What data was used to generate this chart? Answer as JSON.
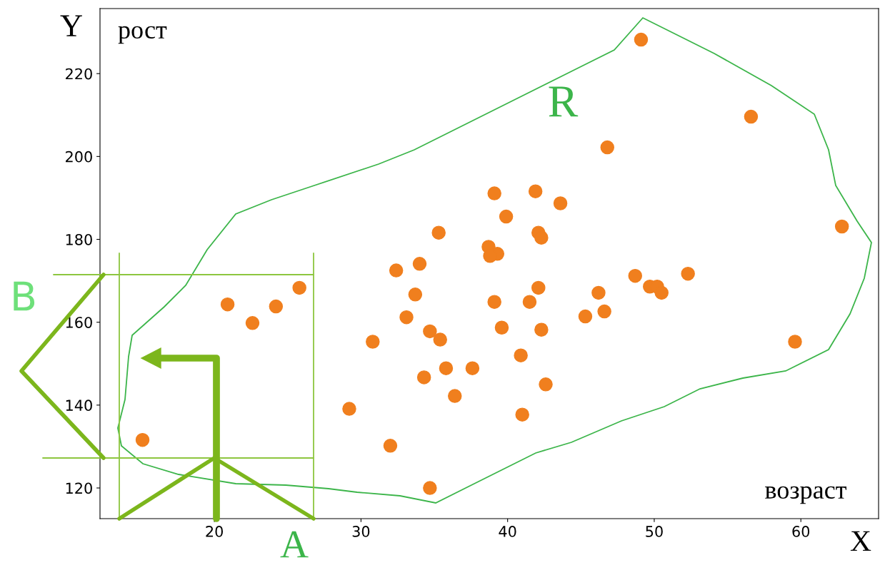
{
  "chart_data": {
    "type": "scatter",
    "x": [
      15.1,
      20.9,
      22.6,
      24.2,
      25.8,
      29.2,
      30.8,
      32.0,
      34.7,
      32.4,
      34.0,
      33.7,
      33.1,
      35.3,
      34.7,
      35.4,
      34.3,
      35.8,
      36.4,
      37.6,
      39.1,
      39.9,
      38.7,
      39.3,
      38.8,
      39.1,
      39.6,
      40.9,
      41.0,
      41.9,
      43.6,
      42.1,
      42.3,
      42.1,
      41.5,
      42.3,
      42.6,
      46.8,
      49.1,
      46.2,
      46.6,
      45.3,
      48.7,
      49.7,
      50.2,
      50.5,
      52.3,
      56.6,
      62.8,
      59.6
    ],
    "values": [
      131.6,
      164.3,
      159.8,
      163.8,
      168.3,
      139.1,
      155.3,
      130.2,
      120.0,
      172.5,
      174.1,
      166.7,
      161.2,
      181.6,
      157.8,
      155.8,
      146.7,
      148.9,
      142.2,
      148.9,
      191.1,
      185.5,
      178.2,
      176.5,
      176.0,
      164.9,
      158.7,
      152.0,
      137.7,
      191.6,
      188.7,
      181.6,
      180.4,
      168.3,
      164.9,
      158.2,
      145.0,
      202.2,
      228.2,
      167.1,
      162.6,
      161.4,
      171.2,
      168.6,
      168.6,
      167.1,
      171.7,
      209.6,
      183.1,
      155.3
    ],
    "color": "#f07f1e",
    "marker": "circle",
    "grid": false,
    "xlim": [
      12.2,
      65.3
    ],
    "ylim": [
      112.6,
      235.7
    ],
    "xticks": [
      20,
      30,
      40,
      50,
      60
    ],
    "yticks": [
      120,
      140,
      160,
      180,
      200,
      220
    ],
    "annotations": [
      "Y",
      "рост",
      "возраст",
      "X",
      "R",
      "A",
      "B"
    ]
  }
}
